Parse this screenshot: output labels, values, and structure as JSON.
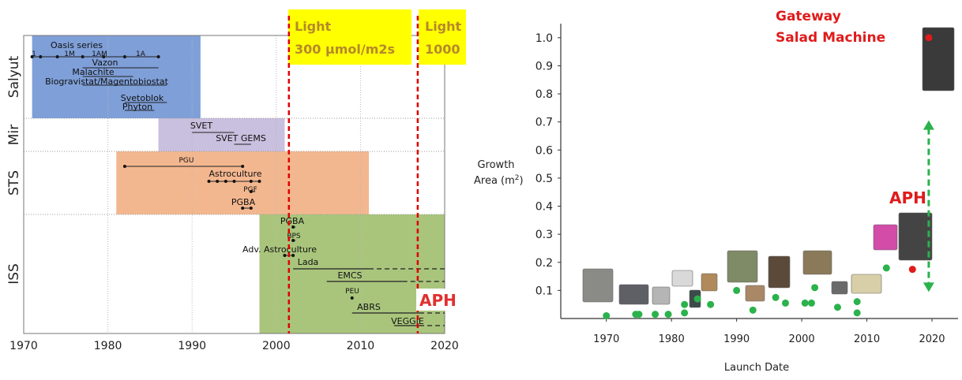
{
  "chart_data": [
    {
      "type": "timeline",
      "x": {
        "min": 1970,
        "max": 2020,
        "ticks": [
          1970,
          1980,
          1990,
          2000,
          2010,
          2020
        ]
      },
      "colors": {
        "salyut": "#7f9fd8",
        "mir": "#c9bfde",
        "sts": "#f3b78f",
        "iss": "#a9c57c",
        "light_line": "#e00000",
        "light_box": "#ffff00",
        "light_text": "#b5892a",
        "aph": "#e23030"
      },
      "stations": [
        {
          "name": "Salyut",
          "start": 1971,
          "end": 1991,
          "color_key": "salyut"
        },
        {
          "name": "Mir",
          "start": 1986,
          "end": 2001,
          "color_key": "mir"
        },
        {
          "name": "STS",
          "start": 1981,
          "end": 2011,
          "color_key": "sts"
        },
        {
          "name": "ISS",
          "start": 1998,
          "end": 2020,
          "color_key": "iss"
        }
      ],
      "experiments": [
        {
          "station": "Salyut",
          "label": "1",
          "start": 1971,
          "end": 1972,
          "dots": [
            1971,
            1972
          ]
        },
        {
          "station": "Salyut",
          "label": "1M",
          "start": 1974,
          "end": 1979,
          "dots": [
            1974,
            1977
          ]
        },
        {
          "station": "Salyut",
          "label": "1AM",
          "start": 1977,
          "end": 1982,
          "dots": [
            1979.5
          ]
        },
        {
          "station": "Salyut",
          "label": "1A",
          "start": 1982,
          "end": 1986,
          "dots": [
            1982,
            1986
          ]
        },
        {
          "station": "Salyut",
          "label": "Oasis series",
          "start": 1971,
          "end": 1986,
          "dots": []
        },
        {
          "station": "Salyut",
          "label": "Vazon",
          "start": 1977,
          "end": 1986,
          "dots": []
        },
        {
          "station": "Salyut",
          "label": "Malachite",
          "start": 1977,
          "end": 1983,
          "dots": []
        },
        {
          "station": "Salyut",
          "label": "Biogravistat/Magentobiostat",
          "start": 1977,
          "end": 1987,
          "dots": []
        },
        {
          "station": "Salyut",
          "label": "Svetoblok",
          "start": 1982,
          "end": 1987,
          "dots": []
        },
        {
          "station": "Salyut",
          "label": "Phyton",
          "start": 1982,
          "end": 1985.5,
          "dots": []
        },
        {
          "station": "Mir",
          "label": "SVET",
          "start": 1990,
          "end": 1995,
          "dots": []
        },
        {
          "station": "Mir",
          "label": "SVET GEMS",
          "start": 1995,
          "end": 1997,
          "dots": []
        },
        {
          "station": "STS",
          "label": "PGU",
          "start": 1982,
          "end": 1996,
          "dots": [
            1982,
            1996
          ]
        },
        {
          "station": "STS",
          "label": "Astroculture",
          "start": 1992,
          "end": 1998,
          "dots": [
            1992,
            1993,
            1994,
            1995,
            1997,
            1998
          ]
        },
        {
          "station": "STS",
          "label": "PGF",
          "start": 1997,
          "end": 1997.5,
          "dots": [
            1997
          ]
        },
        {
          "station": "STS",
          "label": "PGBA",
          "start": 1996,
          "end": 1997,
          "dots": [
            1996,
            1997
          ]
        },
        {
          "station": "ISS",
          "label": "PGBA",
          "start": 2002,
          "end": 2002.3,
          "dots": [
            2002
          ]
        },
        {
          "station": "ISS",
          "label": "BPS",
          "start": 2002,
          "end": 2002.3,
          "dots": [
            2002
          ]
        },
        {
          "station": "ISS",
          "label": "Adv. Astroculture",
          "start": 2001,
          "end": 2002,
          "dots": [
            2001,
            2002
          ]
        },
        {
          "station": "ISS",
          "label": "Lada",
          "start": 2002,
          "end": 2020,
          "dots": []
        },
        {
          "station": "ISS",
          "label": "EMCS",
          "start": 2006,
          "end": 2020,
          "dots": []
        },
        {
          "station": "ISS",
          "label": "PEU",
          "start": 2009,
          "end": 2009,
          "dots": [
            2009
          ]
        },
        {
          "station": "ISS",
          "label": "ABRS",
          "start": 2009,
          "end": 2020,
          "dots": []
        },
        {
          "station": "ISS",
          "label": "VEGGIE",
          "start": 2014,
          "end": 2020,
          "dots": []
        }
      ],
      "light_markers": [
        {
          "year": 2001.5,
          "label_line1": "Light",
          "label_line2": "300 μmol/m2s"
        },
        {
          "year": 2016.8,
          "label_line1": "Light",
          "label_line2": "1000"
        }
      ],
      "annotations": [
        {
          "text": "APH"
        }
      ]
    },
    {
      "type": "scatter",
      "xlabel": "Launch Date",
      "ylabel": "Growth Area (m²)",
      "ylabel_line1": "Growth",
      "ylabel_line2": "Area (m",
      "ylabel_sup": "2",
      "ylabel_close": ")",
      "xlim": [
        1963,
        2024
      ],
      "ylim": [
        0,
        1.05
      ],
      "xticks": [
        1970,
        1980,
        1990,
        2000,
        2010,
        2020
      ],
      "yticks": [
        "0.1",
        "0.2",
        "0.3",
        "0.4",
        "0.5",
        "0.6",
        "0.7",
        "0.8",
        "0.9",
        "1.0"
      ],
      "colors": {
        "points": "#2bb24c",
        "highlight": "#e01b1b",
        "arrow": "#2bb24c",
        "title": "#e01b1b",
        "aph": "#e01b1b"
      },
      "title_line1": "Gateway",
      "title_line2": "Salad Machine",
      "aph_label": "APH",
      "series": [
        {
          "name": "",
          "x": [
            1970,
            1974.5,
            1975,
            1977.5,
            1979.5,
            1982,
            1982,
            1984,
            1986,
            1990,
            1992.5,
            1996,
            1997.5,
            2000.5,
            2001.5,
            2002,
            2005.5,
            2008.5,
            2008.5,
            2013
          ],
          "y": [
            0.01,
            0.015,
            0.015,
            0.015,
            0.015,
            0.02,
            0.05,
            0.07,
            0.05,
            0.1,
            0.03,
            0.075,
            0.055,
            0.055,
            0.055,
            0.11,
            0.04,
            0.02,
            0.06,
            0.18
          ]
        },
        {
          "name": "",
          "x": [
            2017,
            2019.5
          ],
          "y": [
            0.175,
            1.0
          ]
        }
      ],
      "arrow": {
        "x": 2019.5,
        "y_from": 0.1,
        "y_to": 0.7
      }
    }
  ]
}
